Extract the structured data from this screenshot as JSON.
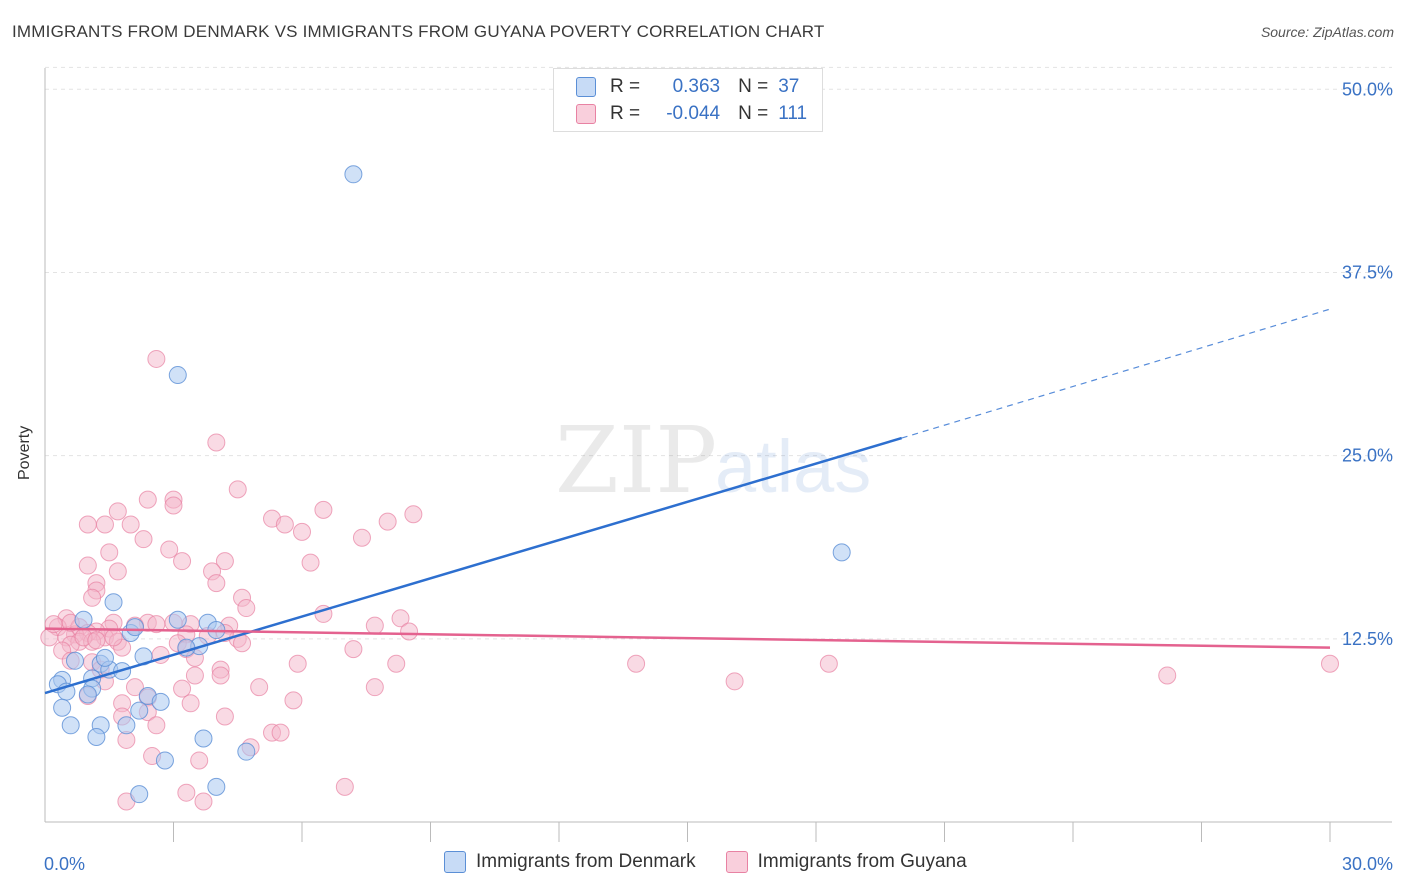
{
  "title": "IMMIGRANTS FROM DENMARK VS IMMIGRANTS FROM GUYANA POVERTY CORRELATION CHART",
  "source": "Source: ZipAtlas.com",
  "watermark": {
    "zip": "ZIP",
    "atlas": "atlas"
  },
  "legend": {
    "rows": [
      {
        "r_label": "R =",
        "r_value": "0.363",
        "n_label": "N =",
        "n_value": "37"
      },
      {
        "r_label": "R =",
        "r_value": "-0.044",
        "n_label": "N =",
        "n_value": "111"
      }
    ]
  },
  "colors": {
    "blue_fill": "#a9c8f0",
    "blue_stroke": "#5b8fd6",
    "blue_line": "#2d6fcf",
    "pink_fill": "#f4b6c9",
    "pink_stroke": "#e882a3",
    "pink_line": "#e4628f",
    "tick_text": "#3a72c4"
  },
  "chart_data": {
    "type": "scatter",
    "title": "IMMIGRANTS FROM DENMARK VS IMMIGRANTS FROM GUYANA POVERTY CORRELATION CHART",
    "xlabel": "",
    "ylabel": "Poverty",
    "xlim": [
      0,
      30
    ],
    "ylim": [
      0,
      52
    ],
    "x_tick_labels": [
      {
        "value": 0,
        "label": "0.0%"
      },
      {
        "value": 30,
        "label": "30.0%"
      }
    ],
    "y_tick_labels": [
      {
        "value": 12.5,
        "label": "12.5%"
      },
      {
        "value": 25,
        "label": "25.0%"
      },
      {
        "value": 37.5,
        "label": "37.5%"
      },
      {
        "value": 50,
        "label": "50.0%"
      }
    ],
    "series": [
      {
        "name": "Immigrants from Denmark",
        "color": "#a9c8f0",
        "points": [
          [
            7.2,
            44.2
          ],
          [
            3.1,
            30.5
          ],
          [
            18.6,
            18.4
          ],
          [
            1.6,
            15.0
          ],
          [
            0.9,
            13.8
          ],
          [
            3.1,
            13.8
          ],
          [
            3.8,
            13.6
          ],
          [
            4.0,
            13.1
          ],
          [
            2.0,
            12.9
          ],
          [
            3.6,
            12.0
          ],
          [
            2.3,
            11.3
          ],
          [
            0.7,
            11.0
          ],
          [
            1.3,
            10.8
          ],
          [
            1.5,
            10.4
          ],
          [
            1.8,
            10.3
          ],
          [
            0.4,
            9.7
          ],
          [
            1.1,
            9.8
          ],
          [
            0.3,
            9.4
          ],
          [
            1.1,
            9.1
          ],
          [
            0.5,
            8.9
          ],
          [
            1.0,
            8.7
          ],
          [
            2.4,
            8.6
          ],
          [
            2.7,
            8.2
          ],
          [
            0.4,
            7.8
          ],
          [
            2.2,
            7.6
          ],
          [
            0.6,
            6.6
          ],
          [
            1.3,
            6.6
          ],
          [
            1.9,
            6.6
          ],
          [
            1.2,
            5.8
          ],
          [
            3.7,
            5.7
          ],
          [
            4.7,
            4.8
          ],
          [
            2.8,
            4.2
          ],
          [
            4.0,
            2.4
          ],
          [
            2.2,
            1.9
          ],
          [
            3.3,
            11.9
          ],
          [
            1.4,
            11.2
          ],
          [
            2.1,
            13.3
          ]
        ]
      },
      {
        "name": "Immigrants from Guyana",
        "color": "#f4b6c9",
        "points": [
          [
            2.6,
            31.6
          ],
          [
            4.0,
            25.9
          ],
          [
            4.5,
            22.7
          ],
          [
            2.4,
            22.0
          ],
          [
            3.0,
            22.0
          ],
          [
            3.0,
            21.6
          ],
          [
            1.7,
            21.2
          ],
          [
            6.5,
            21.3
          ],
          [
            8.6,
            21.0
          ],
          [
            5.3,
            20.7
          ],
          [
            8.0,
            20.5
          ],
          [
            1.0,
            20.3
          ],
          [
            1.4,
            20.3
          ],
          [
            2.0,
            20.3
          ],
          [
            5.6,
            20.3
          ],
          [
            6.0,
            19.8
          ],
          [
            7.4,
            19.4
          ],
          [
            2.3,
            19.3
          ],
          [
            2.9,
            18.6
          ],
          [
            1.5,
            18.4
          ],
          [
            3.2,
            17.8
          ],
          [
            6.2,
            17.7
          ],
          [
            4.2,
            17.8
          ],
          [
            1.0,
            17.5
          ],
          [
            1.7,
            17.1
          ],
          [
            3.9,
            17.1
          ],
          [
            4.0,
            16.3
          ],
          [
            1.2,
            16.3
          ],
          [
            1.2,
            15.8
          ],
          [
            1.1,
            15.3
          ],
          [
            4.6,
            15.3
          ],
          [
            4.7,
            14.6
          ],
          [
            6.5,
            14.2
          ],
          [
            0.5,
            13.9
          ],
          [
            8.3,
            13.9
          ],
          [
            1.6,
            13.6
          ],
          [
            2.4,
            13.6
          ],
          [
            3.4,
            13.5
          ],
          [
            4.3,
            13.4
          ],
          [
            7.7,
            13.4
          ],
          [
            2.1,
            13.4
          ],
          [
            0.8,
            13.3
          ],
          [
            0.3,
            13.3
          ],
          [
            1.5,
            13.2
          ],
          [
            8.5,
            13.0
          ],
          [
            1.2,
            13.0
          ],
          [
            1.0,
            12.9
          ],
          [
            0.7,
            12.8
          ],
          [
            3.3,
            12.8
          ],
          [
            3.8,
            12.7
          ],
          [
            0.1,
            12.6
          ],
          [
            0.5,
            12.6
          ],
          [
            1.4,
            12.6
          ],
          [
            4.5,
            12.5
          ],
          [
            0.8,
            12.3
          ],
          [
            1.1,
            12.3
          ],
          [
            1.7,
            12.3
          ],
          [
            3.1,
            12.2
          ],
          [
            4.6,
            12.2
          ],
          [
            0.6,
            12.1
          ],
          [
            1.8,
            11.9
          ],
          [
            7.2,
            11.8
          ],
          [
            3.3,
            11.8
          ],
          [
            0.4,
            11.7
          ],
          [
            2.7,
            11.4
          ],
          [
            3.5,
            11.2
          ],
          [
            0.6,
            11.0
          ],
          [
            1.1,
            10.9
          ],
          [
            5.9,
            10.8
          ],
          [
            8.2,
            10.8
          ],
          [
            13.8,
            10.8
          ],
          [
            18.3,
            10.8
          ],
          [
            30.0,
            10.8
          ],
          [
            1.3,
            10.4
          ],
          [
            4.1,
            10.4
          ],
          [
            3.5,
            10.0
          ],
          [
            4.1,
            10.0
          ],
          [
            16.1,
            9.6
          ],
          [
            26.2,
            10.0
          ],
          [
            1.4,
            9.6
          ],
          [
            7.7,
            9.2
          ],
          [
            5.0,
            9.2
          ],
          [
            2.1,
            9.2
          ],
          [
            3.2,
            9.1
          ],
          [
            2.4,
            8.5
          ],
          [
            1.0,
            8.6
          ],
          [
            5.8,
            8.3
          ],
          [
            1.8,
            8.1
          ],
          [
            3.4,
            8.1
          ],
          [
            2.4,
            7.5
          ],
          [
            1.8,
            7.2
          ],
          [
            4.2,
            7.2
          ],
          [
            2.6,
            6.6
          ],
          [
            5.3,
            6.1
          ],
          [
            5.5,
            6.1
          ],
          [
            1.9,
            5.6
          ],
          [
            4.8,
            5.1
          ],
          [
            2.5,
            4.5
          ],
          [
            3.6,
            4.2
          ],
          [
            7.0,
            2.4
          ],
          [
            3.3,
            2.0
          ],
          [
            3.7,
            1.4
          ],
          [
            1.9,
            1.4
          ],
          [
            0.2,
            13.5
          ],
          [
            0.6,
            13.6
          ],
          [
            0.9,
            12.6
          ],
          [
            1.6,
            12.6
          ],
          [
            2.6,
            13.5
          ],
          [
            4.2,
            12.9
          ],
          [
            1.2,
            12.4
          ],
          [
            3.0,
            13.6
          ]
        ]
      }
    ],
    "trendlines": [
      {
        "series": "Immigrants from Denmark",
        "x0": 0,
        "y0": 8.8,
        "x1": 20.0,
        "y1": 26.2,
        "dashed_to_x": 30.0,
        "dashed_to_y": 35.0
      },
      {
        "series": "Immigrants from Guyana",
        "x0": 0,
        "y0": 13.2,
        "x1": 30.0,
        "y1": 11.9
      }
    ]
  },
  "bottom_legend": [
    {
      "label": "Immigrants from Denmark"
    },
    {
      "label": "Immigrants from Guyana"
    }
  ]
}
